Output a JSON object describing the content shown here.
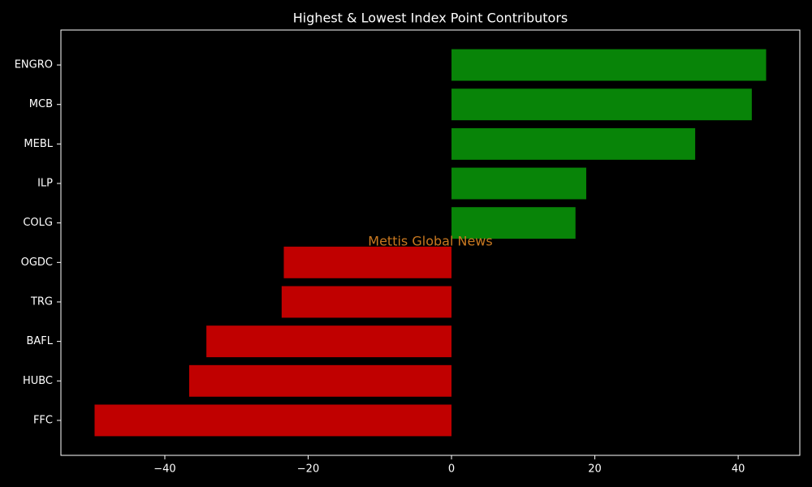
{
  "chart_data": {
    "type": "hbar",
    "title": "Highest & Lowest Index Point Contributors",
    "watermark": "Mettis Global News",
    "categories": [
      "ENGRO",
      "MCB",
      "MEBL",
      "ILP",
      "COLG",
      "OGDC",
      "TRG",
      "BAFL",
      "HUBC",
      "FFC"
    ],
    "values": [
      43.9,
      41.9,
      34.0,
      18.8,
      17.3,
      -23.4,
      -23.7,
      -34.2,
      -36.6,
      -49.8
    ],
    "colors": [
      "#088408",
      "#088408",
      "#088408",
      "#088408",
      "#088408",
      "#c00000",
      "#c00000",
      "#c00000",
      "#c00000",
      "#c00000"
    ],
    "xlim": [
      -54.5,
      48.6
    ],
    "xticks": [
      {
        "value": -40,
        "label": "−40"
      },
      {
        "value": -20,
        "label": "−20"
      },
      0,
      20,
      40
    ],
    "grid": false
  }
}
